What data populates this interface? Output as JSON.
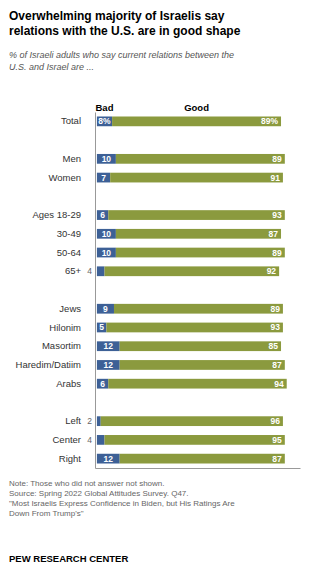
{
  "chart_data": {
    "type": "bar",
    "orientation": "horizontal",
    "stacked": true,
    "data_labels": true,
    "tick_labels": "y",
    "title": "Overwhelming majority of Israelis say\nrelations with the U.S. are in good shape",
    "subtitle": "% of Israeli adults who say current relations between the\nU.S. and Israel are ...",
    "note": "Note: Those who did not answer not shown.\nSource: Spring 2022 Global Attitudes Survey. Q47.\n\"Most Israelis Express Confidence in Biden, but His Ratings Are\nDown From Trump's\"",
    "footer": "PEW RESEARCH CENTER",
    "categories": [
      "Total",
      null,
      "Men",
      "Women",
      null,
      "Ages 18-29",
      "30-49",
      "50-64",
      "65+",
      null,
      "Jews",
      "Hilonim",
      "Masortim",
      "Haredim/Datiim",
      "Arabs",
      null,
      "Left",
      "Center",
      "Right"
    ],
    "series": [
      {
        "name": "Bad",
        "color": "#3d6096",
        "values": [
          8,
          null,
          10,
          7,
          null,
          6,
          10,
          10,
          4,
          null,
          9,
          5,
          12,
          12,
          6,
          null,
          2,
          4,
          12
        ],
        "value_labels": [
          "8%",
          null,
          "10",
          "7",
          null,
          "6",
          "10",
          "10",
          "4",
          null,
          "9",
          "5",
          "12",
          "12",
          "6",
          null,
          "2",
          "4",
          "12"
        ]
      },
      {
        "name": "Good",
        "color": "#8b9a3e",
        "values": [
          89,
          null,
          89,
          91,
          null,
          93,
          87,
          89,
          92,
          null,
          89,
          93,
          85,
          87,
          94,
          null,
          96,
          95,
          87
        ],
        "value_labels": [
          "89%",
          null,
          "89",
          "91",
          null,
          "93",
          "87",
          "89",
          "92",
          null,
          "89",
          "93",
          "85",
          "87",
          "94",
          null,
          "96",
          "95",
          "87"
        ]
      }
    ],
    "xlim": [
      -1,
      107
    ],
    "xticks": []
  }
}
